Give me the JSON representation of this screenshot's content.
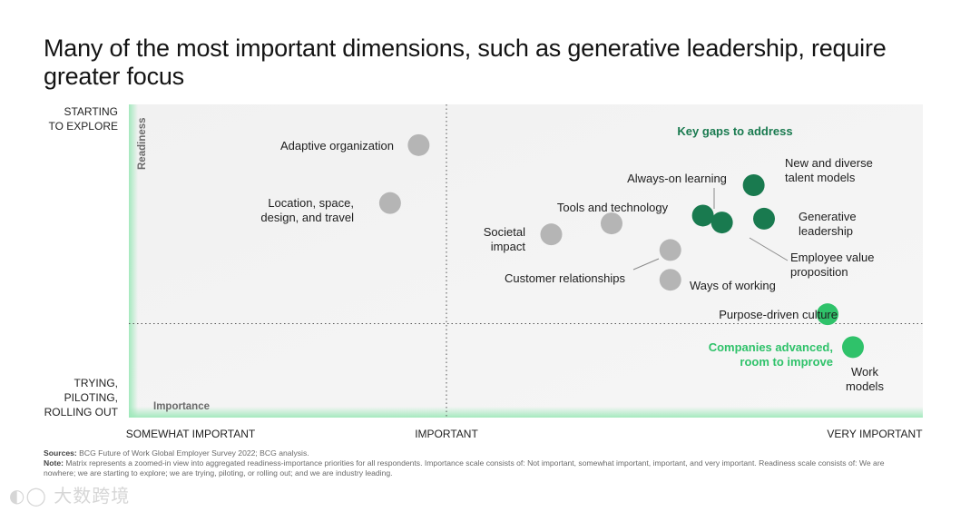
{
  "title": "Many of the most important dimensions, such as generative leadership, require greater focus",
  "colors": {
    "gray_point": "#b5b5b5",
    "dark_green": "#197a4f",
    "bright_green": "#2fc26a",
    "plot_bg": "#f4f4f4",
    "axis_green": "#9be8b8"
  },
  "chart_data": {
    "type": "scatter",
    "title": "Many of the most important dimensions, such as generative leadership, require greater focus",
    "xlabel": "Importance",
    "ylabel": "Readiness",
    "xlim": [
      0,
      100
    ],
    "ylim": [
      0,
      100
    ],
    "x_ticks": [
      "SOMEWHAT IMPORTANT",
      "IMPORTANT",
      "VERY IMPORTANT"
    ],
    "y_ticks": [
      {
        "lines": [
          "STARTING",
          "TO EXPLORE"
        ]
      },
      {
        "lines": [
          "TRYING,",
          "PILOTING,",
          "ROLLING OUT"
        ]
      }
    ],
    "quadrant_divider": {
      "x": 40,
      "y": 30
    },
    "annotations": [
      {
        "text": "Key gaps to address",
        "color": "dark_green"
      },
      {
        "text": "Companies advanced, room to improve",
        "lines": [
          "Companies advanced,",
          "room to improve"
        ],
        "color": "bright_green"
      }
    ],
    "points": [
      {
        "label": "Adaptive organization",
        "lines": [
          "Adaptive organization"
        ],
        "x": 36.5,
        "y": 87.0,
        "group": "gray"
      },
      {
        "label": "Location, space, design, and travel",
        "lines": [
          "Location, space,",
          "design, and travel"
        ],
        "x": 32.9,
        "y": 68.5,
        "group": "gray"
      },
      {
        "label": "Societal impact",
        "lines": [
          "Societal",
          "impact"
        ],
        "x": 53.2,
        "y": 58.5,
        "group": "gray"
      },
      {
        "label": "Tools and technology",
        "lines": [
          "Tools and technology"
        ],
        "x": 60.8,
        "y": 62.0,
        "group": "gray"
      },
      {
        "label": "Customer relationships",
        "lines": [
          "Customer relationships"
        ],
        "x": 68.2,
        "y": 53.5,
        "group": "gray"
      },
      {
        "label": "Ways of working",
        "lines": [
          "Ways of working"
        ],
        "x": 68.2,
        "y": 44.0,
        "group": "gray"
      },
      {
        "label": "Always-on learning",
        "lines": [
          "Always-on learning"
        ],
        "x": 72.3,
        "y": 64.5,
        "group": "dark"
      },
      {
        "label": "Employee value proposition",
        "lines": [
          "Employee value",
          "proposition"
        ],
        "x": 74.7,
        "y": 62.3,
        "group": "dark"
      },
      {
        "label": "New and diverse talent models",
        "lines": [
          "New and diverse",
          "talent models"
        ],
        "x": 78.7,
        "y": 74.2,
        "group": "dark"
      },
      {
        "label": "Generative leadership",
        "lines": [
          "Generative",
          "leadership"
        ],
        "x": 80.0,
        "y": 63.5,
        "group": "dark"
      },
      {
        "label": "Purpose-driven culture",
        "lines": [
          "Purpose-driven culture"
        ],
        "x": 88.0,
        "y": 33.0,
        "group": "bright"
      },
      {
        "label": "Work models",
        "lines": [
          "Work",
          "models"
        ],
        "x": 91.2,
        "y": 22.5,
        "group": "bright"
      }
    ]
  },
  "footnote": {
    "sources_label": "Sources:",
    "sources_text": "BCG Future of Work Global Employer Survey 2022; BCG analysis.",
    "note_label": "Note:",
    "note_text": "Matrix represents a zoomed-in view into aggregated readiness-importance priorities for all respondents. Importance scale consists of: Not important, somewhat important, important, and very important. Readiness scale consists of: We are nowhere; we are starting to explore; we are trying, piloting, or rolling out; and we are industry leading."
  },
  "watermark": "大数跨境"
}
